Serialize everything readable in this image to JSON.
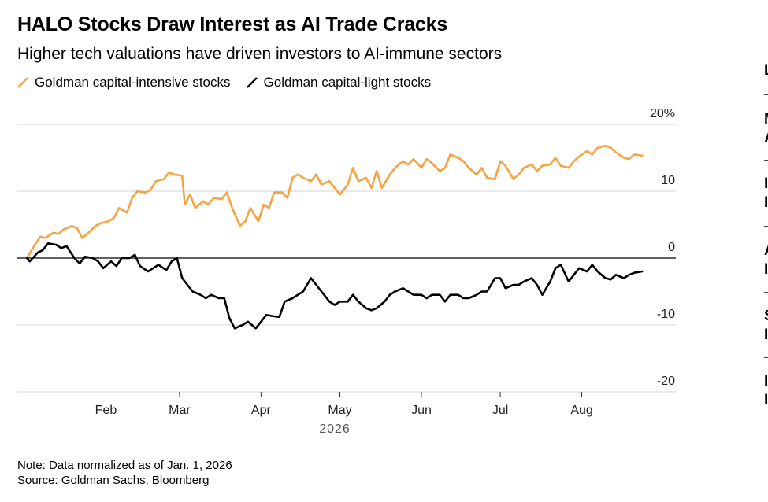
{
  "title": "HALO Stocks Draw Interest as AI Trade Cracks",
  "subtitle": "Higher tech valuations have driven investors to AI-immune sectors",
  "notes": {
    "note": "Note: Data normalized as of Jan. 1, 2026",
    "source": "Source: Goldman Sachs, Bloomberg"
  },
  "side_panel": {
    "items": [
      {
        "lines": [
          "L"
        ]
      },
      {
        "lines": [
          "M",
          "A"
        ]
      },
      {
        "lines": [
          "I",
          "I"
        ]
      },
      {
        "lines": [
          "A",
          "I"
        ]
      },
      {
        "lines": [
          "S",
          "I"
        ]
      },
      {
        "lines": [
          "I",
          "I"
        ]
      }
    ]
  },
  "colors": {
    "capital_intensive": "#f5a343",
    "capital_light": "#000000",
    "grid": "#d4d4d4",
    "zero_line": "#000000",
    "text_muted": "#555555"
  },
  "chart_data": {
    "type": "line",
    "x_axis": {
      "type": "date",
      "range": [
        "2026-01-01",
        "2026-08-26"
      ],
      "ticks": [
        {
          "date": "2026-02-01",
          "label": "Feb"
        },
        {
          "date": "2026-03-01",
          "label": "Mar"
        },
        {
          "date": "2026-04-01",
          "label": "Apr"
        },
        {
          "date": "2026-05-01",
          "label": "May"
        },
        {
          "date": "2026-06-01",
          "label": "Jun"
        },
        {
          "date": "2026-07-01",
          "label": "Jul"
        },
        {
          "date": "2026-08-01",
          "label": "Aug"
        }
      ],
      "year_label": "2026"
    },
    "y_axis": {
      "range": [
        -20,
        20
      ],
      "ticks": [
        20,
        10,
        0,
        -10,
        -20
      ],
      "tick_labels": [
        "20%",
        "10",
        "0",
        "-10",
        "-20"
      ],
      "position": "right",
      "grid": true
    },
    "legend_position": "top-left",
    "series": [
      {
        "name": "Goldman capital-intensive stocks",
        "color": "#f5a343",
        "points": [
          [
            "2026-01-02",
            0.0
          ],
          [
            "2026-01-05",
            2.0
          ],
          [
            "2026-01-07",
            3.2
          ],
          [
            "2026-01-09",
            3.0
          ],
          [
            "2026-01-12",
            3.8
          ],
          [
            "2026-01-14",
            3.6
          ],
          [
            "2026-01-16",
            4.3
          ],
          [
            "2026-01-19",
            4.8
          ],
          [
            "2026-01-21",
            4.5
          ],
          [
            "2026-01-23",
            3.0
          ],
          [
            "2026-01-26",
            4.0
          ],
          [
            "2026-01-28",
            4.8
          ],
          [
            "2026-01-30",
            5.2
          ],
          [
            "2026-02-02",
            5.5
          ],
          [
            "2026-02-04",
            6.0
          ],
          [
            "2026-02-06",
            7.5
          ],
          [
            "2026-02-09",
            6.8
          ],
          [
            "2026-02-11",
            9.0
          ],
          [
            "2026-02-13",
            10.0
          ],
          [
            "2026-02-16",
            9.8
          ],
          [
            "2026-02-18",
            10.2
          ],
          [
            "2026-02-20",
            11.5
          ],
          [
            "2026-02-23",
            11.8
          ],
          [
            "2026-02-25",
            12.8
          ],
          [
            "2026-02-27",
            12.5
          ],
          [
            "2026-03-02",
            12.3
          ],
          [
            "2026-03-03",
            8.0
          ],
          [
            "2026-03-05",
            9.5
          ],
          [
            "2026-03-07",
            7.5
          ],
          [
            "2026-03-10",
            8.5
          ],
          [
            "2026-03-12",
            8.0
          ],
          [
            "2026-03-14",
            9.0
          ],
          [
            "2026-03-17",
            8.8
          ],
          [
            "2026-03-19",
            9.8
          ],
          [
            "2026-03-21",
            7.5
          ],
          [
            "2026-03-24",
            4.8
          ],
          [
            "2026-03-26",
            5.5
          ],
          [
            "2026-03-28",
            7.5
          ],
          [
            "2026-03-31",
            5.5
          ],
          [
            "2026-04-02",
            8.0
          ],
          [
            "2026-04-04",
            7.5
          ],
          [
            "2026-04-06",
            9.8
          ],
          [
            "2026-04-09",
            9.8
          ],
          [
            "2026-04-11",
            9.0
          ],
          [
            "2026-04-13",
            12.0
          ],
          [
            "2026-04-15",
            12.5
          ],
          [
            "2026-04-17",
            12.0
          ],
          [
            "2026-04-20",
            11.5
          ],
          [
            "2026-04-22",
            12.5
          ],
          [
            "2026-04-24",
            11.0
          ],
          [
            "2026-04-27",
            11.5
          ],
          [
            "2026-04-29",
            10.5
          ],
          [
            "2026-05-01",
            9.5
          ],
          [
            "2026-05-04",
            11.0
          ],
          [
            "2026-05-06",
            13.5
          ],
          [
            "2026-05-08",
            11.5
          ],
          [
            "2026-05-11",
            12.0
          ],
          [
            "2026-05-13",
            10.5
          ],
          [
            "2026-05-15",
            13.0
          ],
          [
            "2026-05-17",
            10.5
          ],
          [
            "2026-05-20",
            12.5
          ],
          [
            "2026-05-22",
            13.5
          ],
          [
            "2026-05-25",
            14.5
          ],
          [
            "2026-05-27",
            14.0
          ],
          [
            "2026-05-29",
            14.8
          ],
          [
            "2026-06-01",
            13.5
          ],
          [
            "2026-06-03",
            14.8
          ],
          [
            "2026-06-05",
            14.2
          ],
          [
            "2026-06-08",
            13.0
          ],
          [
            "2026-06-10",
            13.5
          ],
          [
            "2026-06-12",
            15.5
          ],
          [
            "2026-06-15",
            15.0
          ],
          [
            "2026-06-17",
            14.5
          ],
          [
            "2026-06-19",
            13.5
          ],
          [
            "2026-06-22",
            12.5
          ],
          [
            "2026-06-24",
            13.5
          ],
          [
            "2026-06-26",
            12.0
          ],
          [
            "2026-06-29",
            11.8
          ],
          [
            "2026-07-01",
            14.5
          ],
          [
            "2026-07-03",
            13.8
          ],
          [
            "2026-07-06",
            11.8
          ],
          [
            "2026-07-08",
            12.5
          ],
          [
            "2026-07-10",
            13.5
          ],
          [
            "2026-07-13",
            14.0
          ],
          [
            "2026-07-15",
            13.0
          ],
          [
            "2026-07-17",
            13.8
          ],
          [
            "2026-07-20",
            14.0
          ],
          [
            "2026-07-22",
            15.0
          ],
          [
            "2026-07-24",
            13.8
          ],
          [
            "2026-07-27",
            13.5
          ],
          [
            "2026-07-29",
            14.5
          ],
          [
            "2026-07-31",
            15.2
          ],
          [
            "2026-08-03",
            16.0
          ],
          [
            "2026-08-05",
            15.5
          ],
          [
            "2026-08-07",
            16.5
          ],
          [
            "2026-08-10",
            16.8
          ],
          [
            "2026-08-12",
            16.5
          ],
          [
            "2026-08-14",
            15.8
          ],
          [
            "2026-08-17",
            15.0
          ],
          [
            "2026-08-19",
            14.8
          ],
          [
            "2026-08-21",
            15.5
          ],
          [
            "2026-08-24",
            15.3
          ]
        ]
      },
      {
        "name": "Goldman capital-light stocks",
        "color": "#000000",
        "points": [
          [
            "2026-01-02",
            0.0
          ],
          [
            "2026-01-03",
            -0.5
          ],
          [
            "2026-01-06",
            0.8
          ],
          [
            "2026-01-08",
            1.2
          ],
          [
            "2026-01-10",
            2.2
          ],
          [
            "2026-01-13",
            2.0
          ],
          [
            "2026-01-15",
            1.5
          ],
          [
            "2026-01-17",
            1.8
          ],
          [
            "2026-01-20",
            0.0
          ],
          [
            "2026-01-22",
            -0.8
          ],
          [
            "2026-01-24",
            0.2
          ],
          [
            "2026-01-27",
            0.0
          ],
          [
            "2026-01-29",
            -0.5
          ],
          [
            "2026-01-31",
            -1.5
          ],
          [
            "2026-02-03",
            -0.5
          ],
          [
            "2026-02-05",
            -1.2
          ],
          [
            "2026-02-07",
            0.0
          ],
          [
            "2026-02-10",
            0.0
          ],
          [
            "2026-02-12",
            0.5
          ],
          [
            "2026-02-14",
            -1.2
          ],
          [
            "2026-02-17",
            -2.0
          ],
          [
            "2026-02-19",
            -1.5
          ],
          [
            "2026-02-21",
            -1.0
          ],
          [
            "2026-02-24",
            -1.8
          ],
          [
            "2026-02-26",
            -0.5
          ],
          [
            "2026-02-28",
            0.0
          ],
          [
            "2026-03-02",
            -3.0
          ],
          [
            "2026-03-04",
            -4.0
          ],
          [
            "2026-03-06",
            -5.0
          ],
          [
            "2026-03-09",
            -5.5
          ],
          [
            "2026-03-11",
            -6.0
          ],
          [
            "2026-03-13",
            -5.5
          ],
          [
            "2026-03-16",
            -6.0
          ],
          [
            "2026-03-18",
            -6.0
          ],
          [
            "2026-03-20",
            -9.0
          ],
          [
            "2026-03-22",
            -10.5
          ],
          [
            "2026-03-25",
            -10.0
          ],
          [
            "2026-03-27",
            -9.5
          ],
          [
            "2026-03-30",
            -10.5
          ],
          [
            "2026-04-01",
            -9.5
          ],
          [
            "2026-04-03",
            -8.5
          ],
          [
            "2026-04-06",
            -8.7
          ],
          [
            "2026-04-08",
            -8.8
          ],
          [
            "2026-04-10",
            -6.5
          ],
          [
            "2026-04-13",
            -6.0
          ],
          [
            "2026-04-15",
            -5.5
          ],
          [
            "2026-04-17",
            -5.0
          ],
          [
            "2026-04-20",
            -3.0
          ],
          [
            "2026-04-22",
            -4.0
          ],
          [
            "2026-04-24",
            -5.0
          ],
          [
            "2026-04-27",
            -6.5
          ],
          [
            "2026-04-29",
            -7.0
          ],
          [
            "2026-05-01",
            -6.5
          ],
          [
            "2026-05-04",
            -6.5
          ],
          [
            "2026-05-06",
            -5.5
          ],
          [
            "2026-05-08",
            -6.5
          ],
          [
            "2026-05-11",
            -7.5
          ],
          [
            "2026-05-13",
            -7.8
          ],
          [
            "2026-05-15",
            -7.5
          ],
          [
            "2026-05-18",
            -6.5
          ],
          [
            "2026-05-20",
            -5.5
          ],
          [
            "2026-05-22",
            -5.0
          ],
          [
            "2026-05-25",
            -4.5
          ],
          [
            "2026-05-27",
            -5.0
          ],
          [
            "2026-05-29",
            -5.5
          ],
          [
            "2026-06-01",
            -5.5
          ],
          [
            "2026-06-03",
            -6.0
          ],
          [
            "2026-06-05",
            -5.5
          ],
          [
            "2026-06-08",
            -5.5
          ],
          [
            "2026-06-10",
            -6.5
          ],
          [
            "2026-06-12",
            -5.5
          ],
          [
            "2026-06-15",
            -5.5
          ],
          [
            "2026-06-17",
            -6.0
          ],
          [
            "2026-06-19",
            -6.0
          ],
          [
            "2026-06-22",
            -5.5
          ],
          [
            "2026-06-24",
            -5.0
          ],
          [
            "2026-06-26",
            -5.0
          ],
          [
            "2026-06-29",
            -3.0
          ],
          [
            "2026-07-01",
            -3.0
          ],
          [
            "2026-07-03",
            -4.5
          ],
          [
            "2026-07-06",
            -4.0
          ],
          [
            "2026-07-08",
            -4.0
          ],
          [
            "2026-07-10",
            -3.5
          ],
          [
            "2026-07-13",
            -3.0
          ],
          [
            "2026-07-15",
            -4.0
          ],
          [
            "2026-07-17",
            -5.5
          ],
          [
            "2026-07-20",
            -3.5
          ],
          [
            "2026-07-22",
            -1.5
          ],
          [
            "2026-07-24",
            -1.0
          ],
          [
            "2026-07-27",
            -3.5
          ],
          [
            "2026-07-29",
            -2.5
          ],
          [
            "2026-07-31",
            -1.5
          ],
          [
            "2026-08-03",
            -2.0
          ],
          [
            "2026-08-05",
            -1.0
          ],
          [
            "2026-08-07",
            -2.0
          ],
          [
            "2026-08-10",
            -3.0
          ],
          [
            "2026-08-12",
            -3.2
          ],
          [
            "2026-08-14",
            -2.5
          ],
          [
            "2026-08-17",
            -3.0
          ],
          [
            "2026-08-19",
            -2.5
          ],
          [
            "2026-08-21",
            -2.2
          ],
          [
            "2026-08-24",
            -2.0
          ]
        ]
      }
    ]
  }
}
